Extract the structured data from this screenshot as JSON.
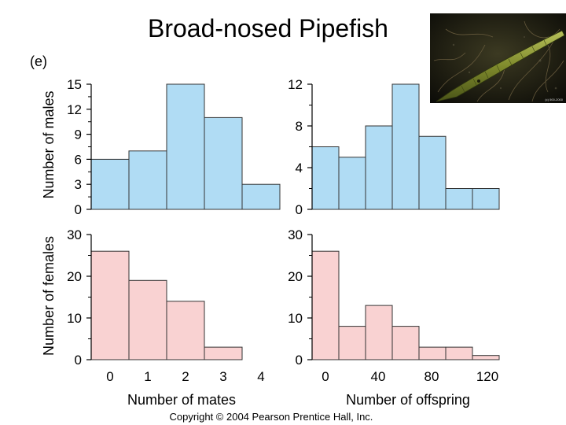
{
  "title": "Broad-nosed Pipefish",
  "panel_label": "(e)",
  "copyright": "Copyright © 2004 Pearson Prentice Hall, Inc.",
  "photo_credit": "(c) 500-2000",
  "colors": {
    "male_fill": "#b0dcf4",
    "female_fill": "#f9d2d2",
    "bar_stroke": "#333333"
  },
  "axis_titles": {
    "males_ylabel": "Number of males",
    "females_ylabel": "Number of females",
    "mates_xlabel": "Number of mates",
    "offspring_xlabel": "Number of offspring"
  },
  "chart_data": [
    {
      "id": "males-mates",
      "type": "bar",
      "series_name": "Males",
      "ylabel": "Number of males",
      "xlabel": "",
      "ylim": [
        0,
        15
      ],
      "y_ticks": [
        "0",
        "3",
        "6",
        "9",
        "12",
        "15"
      ],
      "x_ticks": [],
      "values": [
        6,
        7,
        15,
        11,
        3
      ]
    },
    {
      "id": "males-offspring",
      "type": "bar",
      "series_name": "Males",
      "ylabel": "",
      "xlabel": "",
      "ylim": [
        0,
        12
      ],
      "y_ticks": [
        "0",
        "4",
        "8",
        "12"
      ],
      "x_ticks": [],
      "values": [
        6,
        5,
        8,
        12,
        7,
        2,
        2
      ]
    },
    {
      "id": "females-mates",
      "type": "bar",
      "series_name": "Females",
      "ylabel": "Number of females",
      "xlabel": "Number of mates",
      "ylim": [
        0,
        30
      ],
      "y_ticks": [
        "0",
        "10",
        "20",
        "30"
      ],
      "x_ticks": [
        "0",
        "1",
        "2",
        "3",
        "4"
      ],
      "values": [
        26,
        19,
        14,
        3,
        0
      ]
    },
    {
      "id": "females-offspring",
      "type": "bar",
      "series_name": "Females",
      "ylabel": "",
      "xlabel": "Number of offspring",
      "ylim": [
        0,
        30
      ],
      "y_ticks": [
        "0",
        "10",
        "20",
        "30"
      ],
      "x_ticks": [
        "0",
        "40",
        "80",
        "120"
      ],
      "values": [
        26,
        8,
        13,
        8,
        3,
        3,
        1
      ]
    }
  ]
}
